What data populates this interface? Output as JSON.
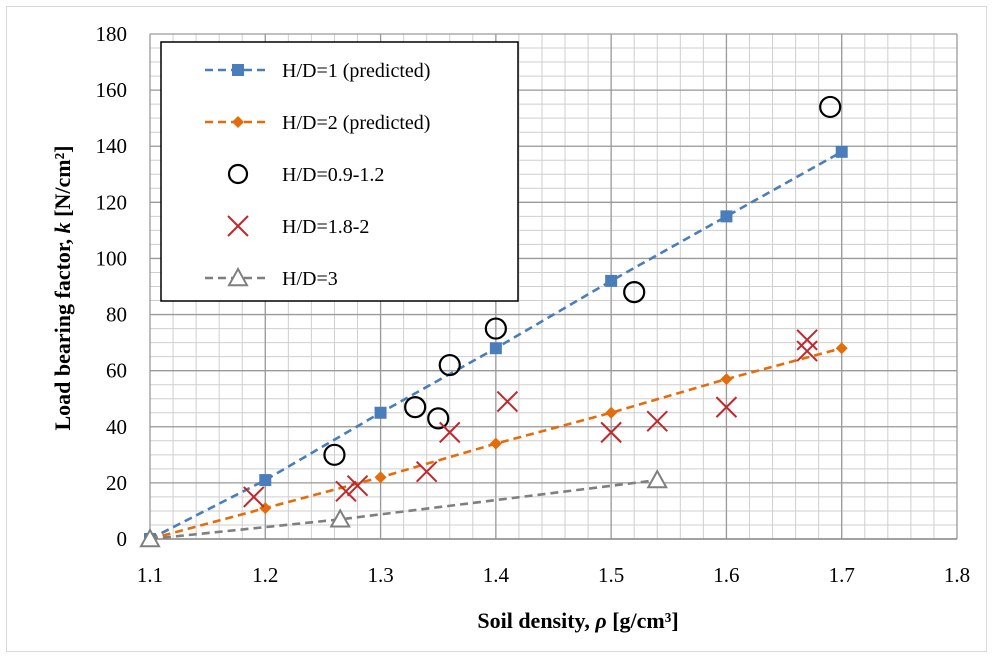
{
  "chart_data": {
    "type": "scatter",
    "xlabel_prefix": "Soil density, ",
    "xlabel_symbol": "ρ",
    "xlabel_unit": " [g/cm³]",
    "ylabel_prefix": "Load bearing factor, ",
    "ylabel_symbol": "k",
    "ylabel_unit": " [N/cm²]",
    "xlim": [
      1.1,
      1.8
    ],
    "ylim": [
      0,
      180
    ],
    "x_ticks": [
      "1.1",
      "1.2",
      "1.3",
      "1.4",
      "1.5",
      "1.6",
      "1.7",
      "1.8"
    ],
    "y_ticks": [
      "0",
      "20",
      "40",
      "60",
      "80",
      "100",
      "120",
      "140",
      "160",
      "180"
    ],
    "grid": true,
    "legend_position": "top-left",
    "series": [
      {
        "name": "H/D=1 (predicted)",
        "style": "dashed-line-square",
        "color": "#4a7ebb",
        "points": [
          [
            1.1,
            0
          ],
          [
            1.2,
            21
          ],
          [
            1.3,
            45
          ],
          [
            1.4,
            68
          ],
          [
            1.5,
            92
          ],
          [
            1.6,
            115
          ],
          [
            1.7,
            138
          ]
        ]
      },
      {
        "name": "H/D=2 (predicted)",
        "style": "dashed-line-diamond",
        "color": "#e46c0a",
        "points": [
          [
            1.1,
            0
          ],
          [
            1.2,
            11
          ],
          [
            1.3,
            22
          ],
          [
            1.4,
            34
          ],
          [
            1.5,
            45
          ],
          [
            1.6,
            57
          ],
          [
            1.7,
            68
          ]
        ]
      },
      {
        "name": "H/D=0.9-1.2",
        "style": "circle",
        "color": "#000000",
        "points": [
          [
            1.26,
            30
          ],
          [
            1.33,
            47
          ],
          [
            1.35,
            43
          ],
          [
            1.36,
            62
          ],
          [
            1.4,
            75
          ],
          [
            1.52,
            88
          ],
          [
            1.69,
            154
          ]
        ]
      },
      {
        "name": "H/D=1.8-2",
        "style": "cross",
        "color": "#c0282d",
        "points": [
          [
            1.19,
            15
          ],
          [
            1.27,
            17
          ],
          [
            1.28,
            19
          ],
          [
            1.34,
            24
          ],
          [
            1.36,
            38
          ],
          [
            1.41,
            49
          ],
          [
            1.5,
            38
          ],
          [
            1.54,
            42
          ],
          [
            1.6,
            47
          ],
          [
            1.67,
            67
          ],
          [
            1.67,
            71
          ]
        ]
      },
      {
        "name": "H/D=3",
        "style": "dashed-line-triangle",
        "color": "#7f7f7f",
        "points": [
          [
            1.1,
            0
          ],
          [
            1.265,
            7
          ],
          [
            1.54,
            21
          ]
        ]
      }
    ]
  }
}
